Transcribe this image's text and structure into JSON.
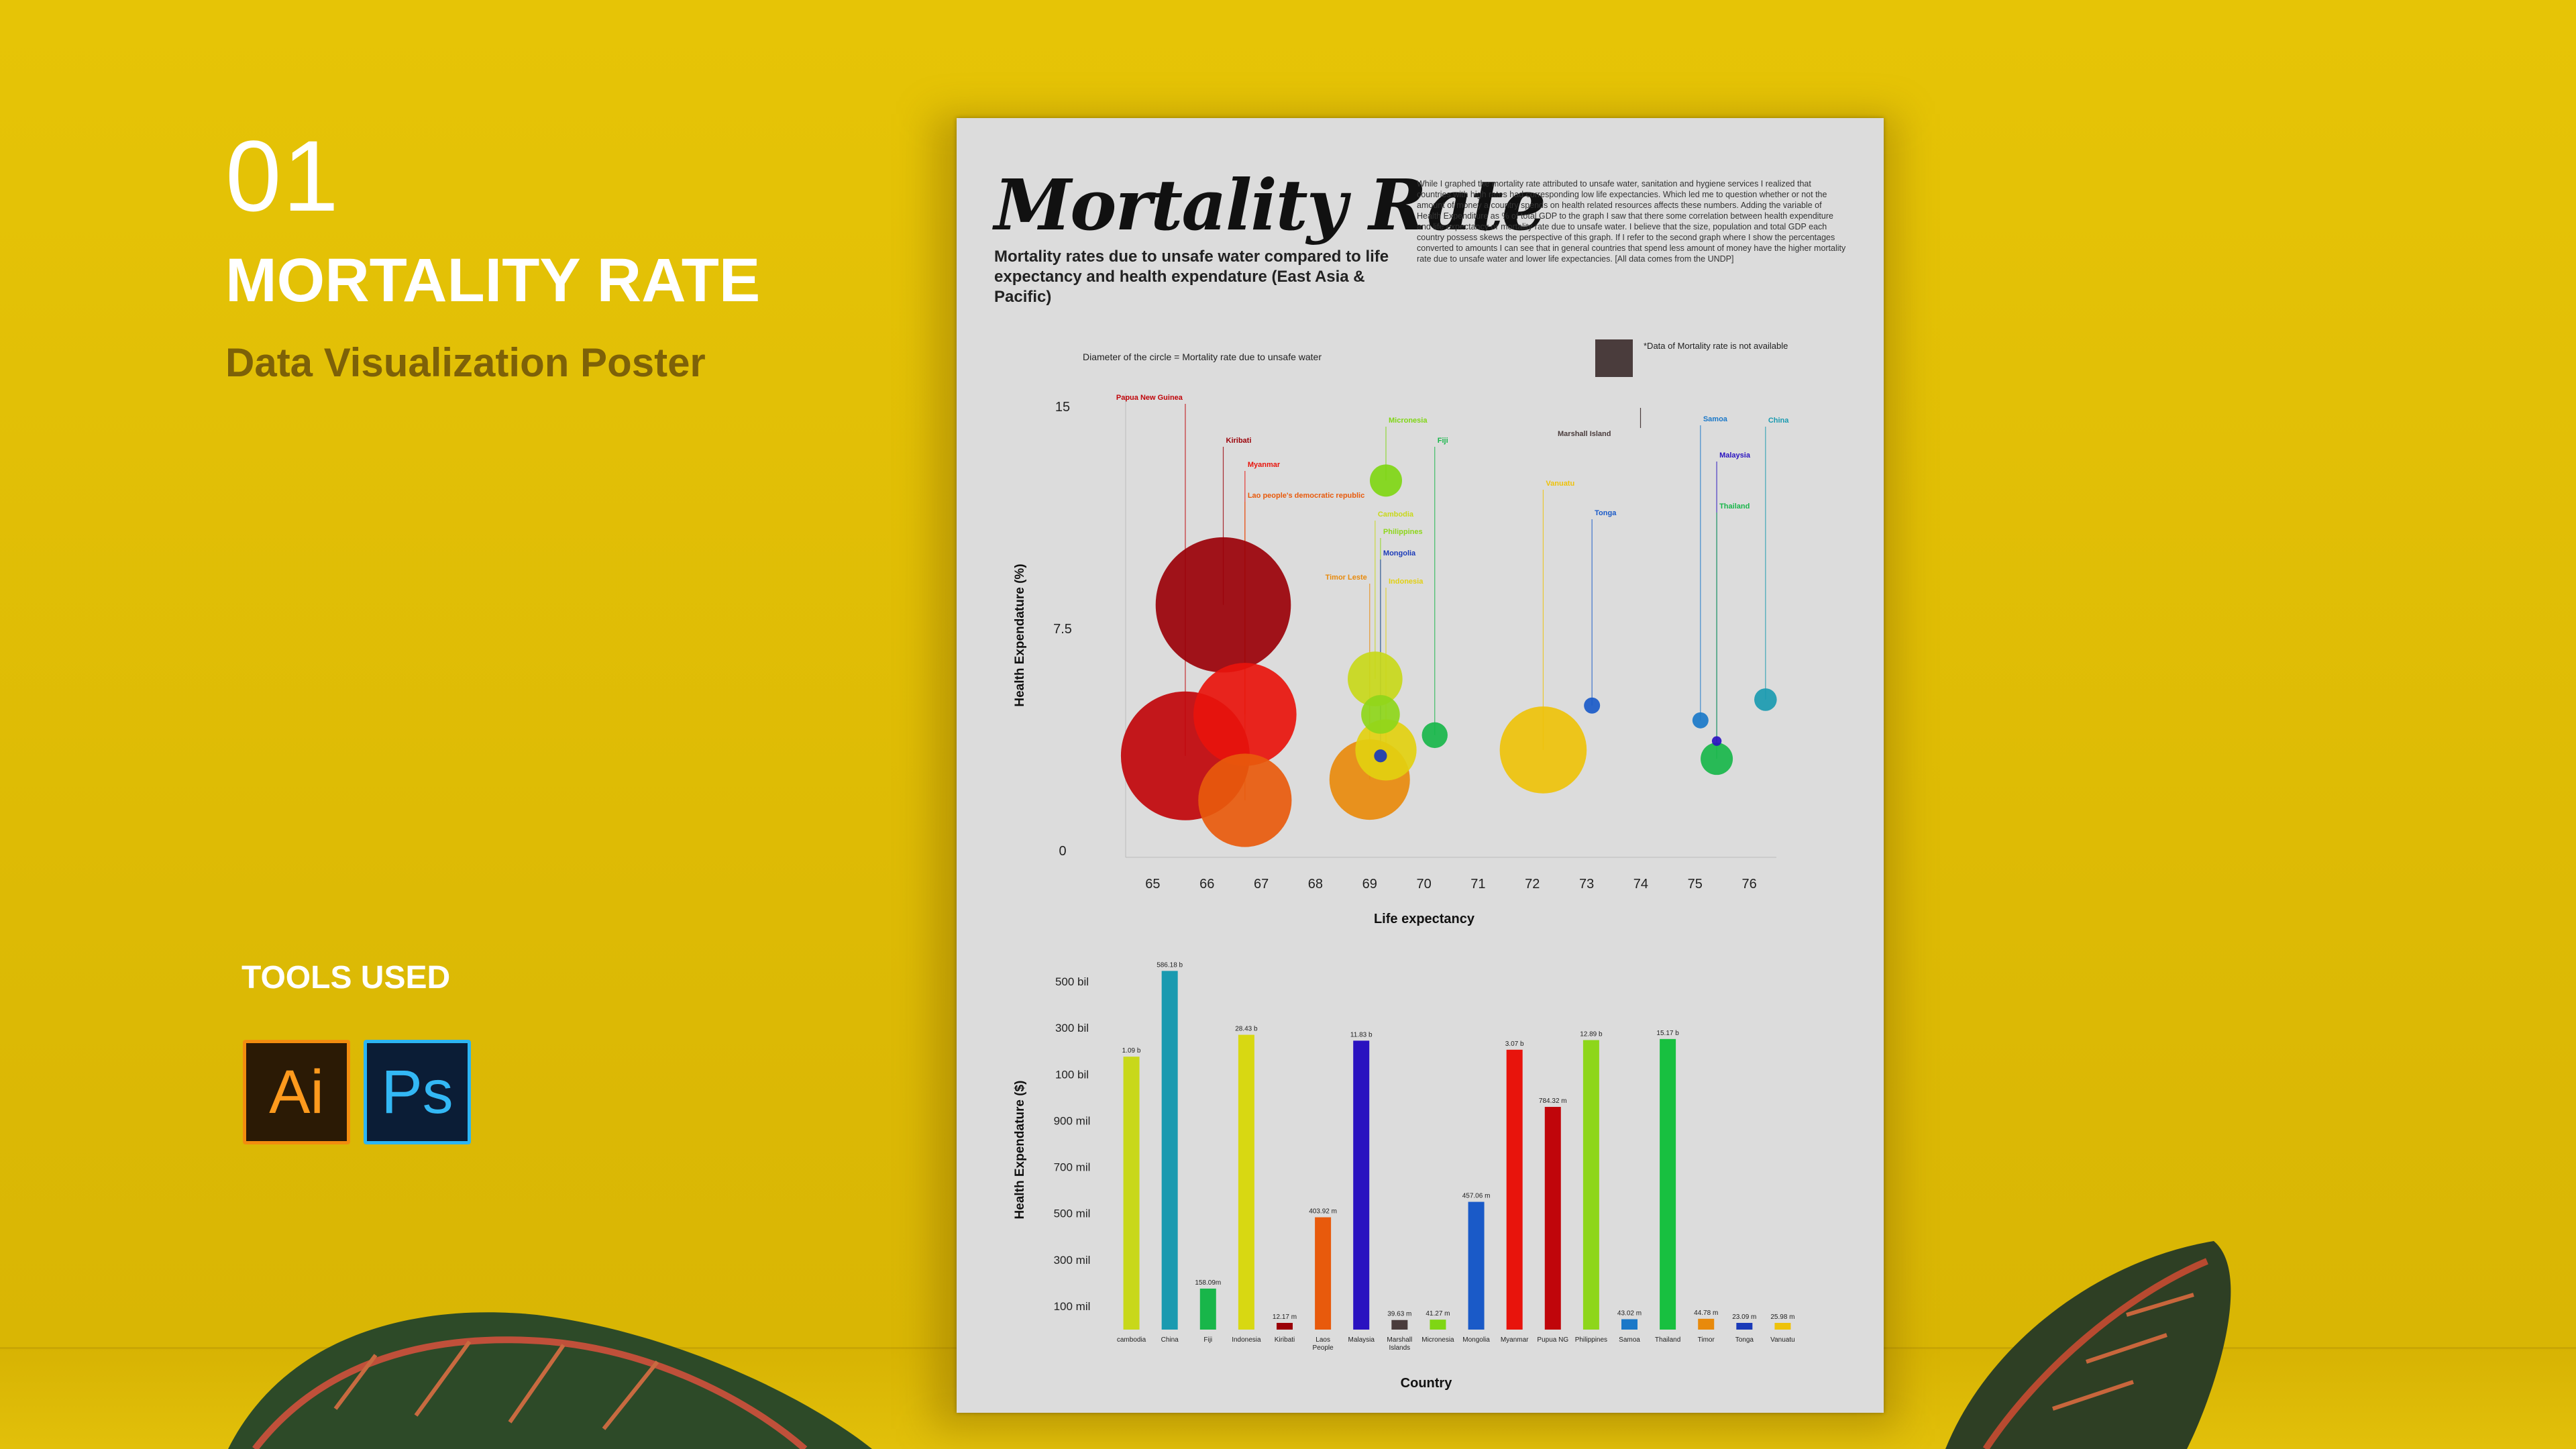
{
  "slide": {
    "number": "01",
    "title": "MORTALITY RATE",
    "subtitle": "Data Visualization Poster",
    "tools_heading": "TOOLS USED",
    "tools": [
      {
        "label": "Ai",
        "icon": "illustrator-icon",
        "color": "#f28c0f"
      },
      {
        "label": "Ps",
        "icon": "photoshop-icon",
        "color": "#2cb5f2"
      }
    ]
  },
  "poster": {
    "title": "Mortality Rate",
    "subtitle": "Mortality rates due to unsafe water compared to life expectancy and health expendature (East Asia & Pacific)",
    "description": "While I graphed the mortality rate attributed to unsafe water, sanitation and hygiene services I realized that countries with high rates had corresponding low life expectancies. Which led me to question whether or not the amount of money a country spends on health related resources affects these numbers. Adding the variable of Health Expenditure as % of total GDP to the graph I saw that there some correlation between health expenditure and life expectancy or mortality rate due to unsafe water. I believe that the size, population and total GDP each country possess skews the perspective of this graph. If I refer to the second graph where I show the percentages converted to amounts I can see that in general countries that spend less amount of money have the higher mortality rate due to unsafe water and lower life expectancies. [All data comes from the UNDP]",
    "legend_note": "Diameter of the circle = Mortality rate due to unsafe water",
    "na_note": "*Data of Mortality rate is not available"
  },
  "chart_data": [
    {
      "type": "scatter",
      "title": "",
      "xlabel": "Life expectancy",
      "ylabel": "Health Expendature (%)",
      "xlim": [
        64.5,
        76.5
      ],
      "ylim": [
        0,
        15
      ],
      "xticks": [
        "65",
        "66",
        "67",
        "68",
        "69",
        "70",
        "71",
        "72",
        "73",
        "74",
        "75",
        "76"
      ],
      "yticks": [
        "15",
        "7.5",
        "0"
      ],
      "points": [
        {
          "label": "Papua New Guinea",
          "x": 65.6,
          "y": 3.2,
          "r": 40,
          "color": "#c0050a"
        },
        {
          "label": "Kiribati",
          "x": 66.3,
          "y": 8.3,
          "r": 42,
          "color": "#9a0008"
        },
        {
          "label": "Myanmar",
          "x": 66.7,
          "y": 4.6,
          "r": 32,
          "color": "#e8140c"
        },
        {
          "label": "Lao people's democratic republic",
          "x": 66.7,
          "y": 1.7,
          "r": 29,
          "color": "#e85a0c"
        },
        {
          "label": "Timor Leste",
          "x": 69.0,
          "y": 2.4,
          "r": 25,
          "color": "#e88a0c"
        },
        {
          "label": "Micronesia",
          "x": 69.3,
          "y": 12.5,
          "r": 10,
          "color": "#7fd614"
        },
        {
          "label": "Fiji",
          "x": 70.2,
          "y": 3.9,
          "r": 8,
          "color": "#18b64a"
        },
        {
          "label": "Cambodia",
          "x": 69.1,
          "y": 5.8,
          "r": 17,
          "color": "#c8d81a"
        },
        {
          "label": "Philippines",
          "x": 69.2,
          "y": 4.6,
          "r": 12,
          "color": "#8ed61a"
        },
        {
          "label": "Mongolia",
          "x": 69.2,
          "y": 3.2,
          "r": 4,
          "color": "#1a3ab8"
        },
        {
          "label": "Indonesia",
          "x": 69.3,
          "y": 3.4,
          "r": 19,
          "color": "#e2d010"
        },
        {
          "label": "Vanuatu",
          "x": 72.2,
          "y": 3.4,
          "r": 27,
          "color": "#eec20a"
        },
        {
          "label": "Tonga",
          "x": 73.1,
          "y": 4.9,
          "r": 5,
          "color": "#1a5ac8"
        },
        {
          "label": "Marshall Island",
          "x": 73.5,
          "y": 15.3,
          "r": 0,
          "color": "#4a3c3c"
        },
        {
          "label": "Samoa",
          "x": 75.1,
          "y": 4.4,
          "r": 5,
          "color": "#1a78c8"
        },
        {
          "label": "Malaysia",
          "x": 75.4,
          "y": 3.7,
          "r": 3,
          "color": "#2a12c0"
        },
        {
          "label": "Thailand",
          "x": 75.4,
          "y": 3.1,
          "r": 10,
          "color": "#18b64a"
        },
        {
          "label": "China",
          "x": 76.3,
          "y": 5.1,
          "r": 7,
          "color": "#1a9ab0"
        }
      ]
    },
    {
      "type": "bar",
      "title": "",
      "xlabel": "Country",
      "ylabel": "Health Expendature ($)",
      "yticks": [
        "500 bil",
        "300 bil",
        "100 bil",
        "900 mil",
        "700 mil",
        "500 mil",
        "300 mil",
        "100 mil"
      ],
      "categories": [
        "cambodia",
        "China",
        "Fiji",
        "Indonesia",
        "Kiribati",
        "Laos People",
        "Malaysia",
        "Marshall Islands",
        "Micronesia",
        "Mongolia",
        "Myanmar",
        "Pupua NG",
        "Philippines",
        "Samoa",
        "Thailand",
        "Timor",
        "Tonga",
        "Vanuatu"
      ],
      "value_labels": [
        "1.09 b",
        "586.18 b",
        "158.09m",
        "28.43 b",
        "12.17 m",
        "403.92 m",
        "11.83 b",
        "39.63 m",
        "41.27 m",
        "457.06 m",
        "3.07 b",
        "784.32 m",
        "12.89 b",
        "43.02 m",
        "15.17 b",
        "44.78 m",
        "23.09 m",
        "25.98 m"
      ],
      "values": [
        1090000000,
        586180000000,
        158090000,
        28430000000,
        12170000,
        403920000,
        11830000000,
        39630000,
        41270000,
        457060000,
        3070000000,
        784320000,
        12890000000,
        43020000,
        15170000000,
        44780000,
        23090000,
        25980000
      ],
      "colors": [
        "#c8d81a",
        "#1a9ab0",
        "#18b64a",
        "#d8d812",
        "#9a0008",
        "#e85a0c",
        "#2a12c0",
        "#4a3c3c",
        "#7fd614",
        "#1a5ac8",
        "#e8140c",
        "#c0050a",
        "#8ed61a",
        "#1a78c8",
        "#18c040",
        "#e88a0c",
        "#1a3ab8",
        "#eec20a"
      ]
    }
  ]
}
